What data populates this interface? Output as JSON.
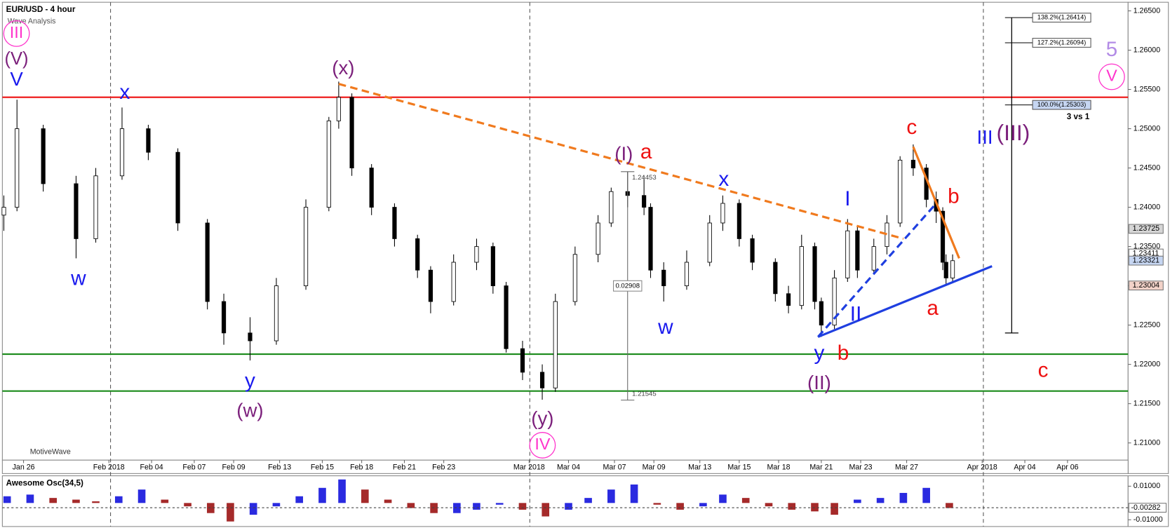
{
  "chart_data": [
    {
      "type": "candlestick",
      "title": "EUR/USD - 4 hour",
      "subtitle": "Wave Analysis",
      "footer": "MotiveWave",
      "colors": {
        "up": "#ffffff",
        "down": "#000000"
      },
      "x": [
        0,
        4,
        12,
        22,
        28,
        36,
        44,
        53,
        62,
        67,
        75,
        83,
        92,
        99,
        102,
        106,
        112,
        119,
        126,
        130,
        137,
        144,
        149,
        153,
        158,
        164,
        168,
        174,
        181,
        185,
        190,
        195,
        197,
        201,
        208,
        215,
        219,
        224,
        228,
        235,
        239,
        243,
        247,
        249,
        253,
        257,
        260,
        265,
        269,
        273,
        277,
        281,
        284,
        286,
        287,
        289
      ],
      "open": [
        1.239,
        1.24,
        1.25,
        1.243,
        1.236,
        1.244,
        1.25,
        1.247,
        1.238,
        1.228,
        1.224,
        1.223,
        1.23,
        1.24,
        1.251,
        1.254,
        1.245,
        1.24,
        1.236,
        1.232,
        1.228,
        1.233,
        1.235,
        1.23,
        1.222,
        1.219,
        1.217,
        1.228,
        1.234,
        1.238,
        1.242,
        1.2415,
        1.24,
        1.232,
        1.23,
        1.233,
        1.238,
        1.2405,
        1.236,
        1.233,
        1.229,
        1.2275,
        1.235,
        1.228,
        1.225,
        1.231,
        1.237,
        1.232,
        1.235,
        1.238,
        1.246,
        1.245,
        1.241,
        1.2395,
        1.233,
        1.231
      ],
      "high": [
        1.2415,
        1.2537,
        1.2505,
        1.244,
        1.245,
        1.2527,
        1.2505,
        1.2475,
        1.2385,
        1.229,
        1.226,
        1.231,
        1.241,
        1.2515,
        1.256,
        1.2545,
        1.2455,
        1.2405,
        1.2365,
        1.2325,
        1.234,
        1.236,
        1.2355,
        1.2305,
        1.223,
        1.22,
        1.229,
        1.235,
        1.239,
        1.2425,
        1.2445,
        1.244,
        1.2405,
        1.233,
        1.2345,
        1.239,
        1.2415,
        1.241,
        1.2365,
        1.2335,
        1.23,
        1.2365,
        1.2355,
        1.2285,
        1.232,
        1.2385,
        1.2375,
        1.236,
        1.239,
        1.2465,
        1.248,
        1.2455,
        1.242,
        1.24,
        1.234,
        1.234
      ],
      "low": [
        1.237,
        1.2395,
        1.242,
        1.2335,
        1.2355,
        1.2435,
        1.246,
        1.237,
        1.227,
        1.2225,
        1.2205,
        1.2225,
        1.2295,
        1.2395,
        1.25,
        1.244,
        1.239,
        1.235,
        1.231,
        1.2265,
        1.2275,
        1.232,
        1.229,
        1.2215,
        1.218,
        1.2155,
        1.2165,
        1.2275,
        1.233,
        1.2375,
        1.24,
        1.239,
        1.231,
        1.228,
        1.2295,
        1.2325,
        1.237,
        1.235,
        1.232,
        1.228,
        1.2265,
        1.227,
        1.227,
        1.2235,
        1.2245,
        1.2305,
        1.231,
        1.2315,
        1.234,
        1.2375,
        1.244,
        1.24,
        1.238,
        1.232,
        1.23,
        1.2305
      ],
      "close": [
        1.24,
        1.25,
        1.243,
        1.236,
        1.244,
        1.25,
        1.247,
        1.238,
        1.228,
        1.224,
        1.223,
        1.23,
        1.24,
        1.251,
        1.254,
        1.245,
        1.24,
        1.236,
        1.232,
        1.228,
        1.233,
        1.235,
        1.23,
        1.222,
        1.219,
        1.217,
        1.228,
        1.234,
        1.238,
        1.242,
        1.2415,
        1.24,
        1.232,
        1.23,
        1.233,
        1.238,
        1.2405,
        1.236,
        1.233,
        1.229,
        1.2275,
        1.235,
        1.228,
        1.225,
        1.231,
        1.237,
        1.232,
        1.235,
        1.238,
        1.246,
        1.245,
        1.241,
        1.2395,
        1.233,
        1.231,
        1.2332
      ],
      "xlim": [
        0,
        342
      ],
      "xticks": [
        {
          "value": 6,
          "label": "Jan 26"
        },
        {
          "value": 32,
          "label": "Feb 2018"
        },
        {
          "value": 45,
          "label": "Feb 04"
        },
        {
          "value": 58,
          "label": "Feb 07"
        },
        {
          "value": 70,
          "label": "Feb 09"
        },
        {
          "value": 84,
          "label": "Feb 13"
        },
        {
          "value": 97,
          "label": "Feb 15"
        },
        {
          "value": 109,
          "label": "Feb 18"
        },
        {
          "value": 122,
          "label": "Feb 21"
        },
        {
          "value": 134,
          "label": "Feb 23"
        },
        {
          "value": 160,
          "label": "Mar 2018"
        },
        {
          "value": 172,
          "label": "Mar 04"
        },
        {
          "value": 186,
          "label": "Mar 07"
        },
        {
          "value": 198,
          "label": "Mar 09"
        },
        {
          "value": 212,
          "label": "Mar 13"
        },
        {
          "value": 224,
          "label": "Mar 15"
        },
        {
          "value": 236,
          "label": "Mar 18"
        },
        {
          "value": 249,
          "label": "Mar 21"
        },
        {
          "value": 261,
          "label": "Mar 23"
        },
        {
          "value": 275,
          "label": "Mar 27"
        },
        {
          "value": 298,
          "label": "Apr 2018"
        },
        {
          "value": 311,
          "label": "Apr 04"
        },
        {
          "value": 324,
          "label": "Apr 06"
        }
      ],
      "ylim": [
        1.208,
        1.2661
      ],
      "yticks": [
        {
          "value": 1.265,
          "label": "1.26500"
        },
        {
          "value": 1.26,
          "label": "1.26000"
        },
        {
          "value": 1.255,
          "label": "1.25500"
        },
        {
          "value": 1.25,
          "label": "1.25000"
        },
        {
          "value": 1.245,
          "label": "1.24500"
        },
        {
          "value": 1.24,
          "label": "1.24000"
        },
        {
          "value": 1.235,
          "label": "1.23500"
        },
        {
          "value": 1.23,
          "label": "1.23000"
        },
        {
          "value": 1.225,
          "label": "1.22500"
        },
        {
          "value": 1.22,
          "label": "1.22000"
        },
        {
          "value": 1.215,
          "label": "1.21500"
        },
        {
          "value": 1.21,
          "label": "1.21000"
        }
      ],
      "grid": false,
      "levels": [
        {
          "value": 1.254,
          "color": "#ee1111"
        },
        {
          "value": 1.2213,
          "color": "#1a8a1a"
        },
        {
          "value": 1.2166,
          "color": "#1a8a1a"
        }
      ],
      "trendlines": [
        {
          "x": [
            102,
            274
          ],
          "y": [
            1.2557,
            1.236
          ],
          "color": "#f07a1e",
          "dashed": true
        },
        {
          "x": [
            248,
            301
          ],
          "y": [
            1.2235,
            1.2325
          ],
          "color": "#1f3fe0",
          "dashed": false
        },
        {
          "x": [
            248,
            284
          ],
          "y": [
            1.2235,
            1.2405
          ],
          "color": "#1f3fe0",
          "dashed": true
        },
        {
          "x": [
            277,
            291
          ],
          "y": [
            1.2477,
            1.2335
          ],
          "color": "#f07a1e",
          "dashed": false
        }
      ],
      "measure": {
        "x": 190,
        "from": 1.24453,
        "to": 1.21545,
        "difference": 0.02908
      },
      "fib": {
        "x": 307,
        "low": 1.224,
        "levels": [
          {
            "value": 1.26414,
            "label": "138.2%(1.26414)"
          },
          {
            "value": 1.26094,
            "label": "127.2%(1.26094)"
          },
          {
            "value": 1.25303,
            "label": "100.0%(1.25303)"
          }
        ]
      },
      "price_tags": [
        {
          "value": 1.23725,
          "label": "1.23725",
          "color": "#d6d6d6"
        },
        {
          "value": 1.23411,
          "label": "1.23411",
          "color": "#ffffff"
        },
        {
          "value": 1.23321,
          "label": "1.23321",
          "color": "#c6d6f2"
        },
        {
          "value": 1.23004,
          "label": "1.23004",
          "color": "#f2d2c8"
        }
      ],
      "annotations": [
        {
          "text": "III",
          "color": "#ff33cc",
          "circled": true
        },
        {
          "text": "(V)",
          "color": "#7b1f7b"
        },
        {
          "text": "V",
          "color": "#1a1aee"
        },
        {
          "text": "w",
          "color": "#1a1aee"
        },
        {
          "text": "x",
          "color": "#1a1aee"
        },
        {
          "text": "y",
          "color": "#1a1aee"
        },
        {
          "text": "(w)",
          "color": "#7b1f7b"
        },
        {
          "text": "(x)",
          "color": "#7b1f7b"
        },
        {
          "text": "(y)",
          "color": "#7b1f7b"
        },
        {
          "text": "IV",
          "color": "#ff33cc",
          "circled": true
        },
        {
          "text": "(I)",
          "color": "#7b1f7b"
        },
        {
          "text": "a",
          "color": "#ee1111"
        },
        {
          "text": "w",
          "color": "#1a1aee"
        },
        {
          "text": "x",
          "color": "#1a1aee"
        },
        {
          "text": "I",
          "color": "#1a1aee"
        },
        {
          "text": "II",
          "color": "#1a1aee"
        },
        {
          "text": "y",
          "color": "#1a1aee"
        },
        {
          "text": "b",
          "color": "#ee1111"
        },
        {
          "text": "(II)",
          "color": "#7b1f7b"
        },
        {
          "text": "c",
          "color": "#ee1111"
        },
        {
          "text": "b",
          "color": "#ee1111"
        },
        {
          "text": "a",
          "color": "#ee1111"
        },
        {
          "text": "III",
          "color": "#1a1aee"
        },
        {
          "text": "(III)",
          "color": "#7b1f7b"
        },
        {
          "text": "5",
          "color": "#b38ce6"
        },
        {
          "text": "V",
          "color": "#ff33cc",
          "circled": true
        },
        {
          "text": "c",
          "color": "#ee1111"
        },
        {
          "text": "3 vs 1",
          "color": "#000000"
        }
      ]
    },
    {
      "type": "oscillator",
      "title": "Awesome Osc(34,5)",
      "colors": {
        "up": "#2a2ae0",
        "down": "#a52a2a"
      },
      "x": [
        1,
        8,
        15,
        22,
        28,
        35,
        42,
        49,
        56,
        63,
        69,
        76,
        83,
        90,
        97,
        103,
        110,
        117,
        124,
        131,
        138,
        144,
        151,
        158,
        165,
        172,
        178,
        185,
        192,
        199,
        206,
        213,
        219,
        226,
        233,
        240,
        247,
        253,
        260,
        267,
        274,
        281,
        288
      ],
      "values": [
        0.004,
        0.005,
        0.003,
        0.002,
        0.001,
        0.004,
        0.008,
        0.002,
        -0.002,
        -0.006,
        -0.011,
        -0.007,
        -0.002,
        0.004,
        0.009,
        0.014,
        0.008,
        0.002,
        -0.003,
        -0.006,
        -0.006,
        -0.004,
        -0.001,
        -0.004,
        -0.008,
        -0.004,
        0.003,
        0.008,
        0.011,
        -0.001,
        -0.004,
        -0.002,
        0.005,
        0.003,
        -0.002,
        -0.004,
        -0.005,
        -0.007,
        0.002,
        0.003,
        0.006,
        0.009,
        -0.003
      ],
      "ylim": [
        -0.014,
        0.0153
      ],
      "yticks": [
        {
          "value": 0.01,
          "label": "0.01000"
        },
        {
          "value": -0.01,
          "label": "-0.01000"
        }
      ],
      "current": -0.00282
    }
  ]
}
